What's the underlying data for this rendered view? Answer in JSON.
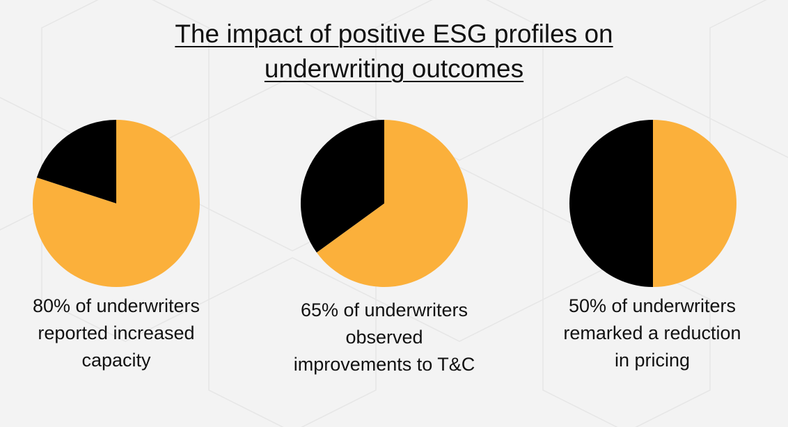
{
  "title": {
    "line1": "The impact of positive ESG profiles on",
    "line2": "underwriting outcomes"
  },
  "colors": {
    "yes": "#fbb03b",
    "no": "#000000",
    "background": "#f3f3f3"
  },
  "chart_data": [
    {
      "type": "pie",
      "slices": [
        {
          "value": 80,
          "color": "#fbb03b"
        },
        {
          "value": 20,
          "color": "#000000"
        }
      ],
      "caption": [
        "80% of underwriters",
        "reported increased",
        "capacity"
      ]
    },
    {
      "type": "pie",
      "slices": [
        {
          "value": 65,
          "color": "#fbb03b"
        },
        {
          "value": 35,
          "color": "#000000"
        }
      ],
      "caption": [
        "65% of underwriters",
        "observed",
        "improvements to T&C"
      ]
    },
    {
      "type": "pie",
      "slices": [
        {
          "value": 50,
          "color": "#fbb03b"
        },
        {
          "value": 50,
          "color": "#000000"
        }
      ],
      "caption": [
        "50% of underwriters",
        "remarked a reduction",
        "in pricing"
      ]
    }
  ]
}
